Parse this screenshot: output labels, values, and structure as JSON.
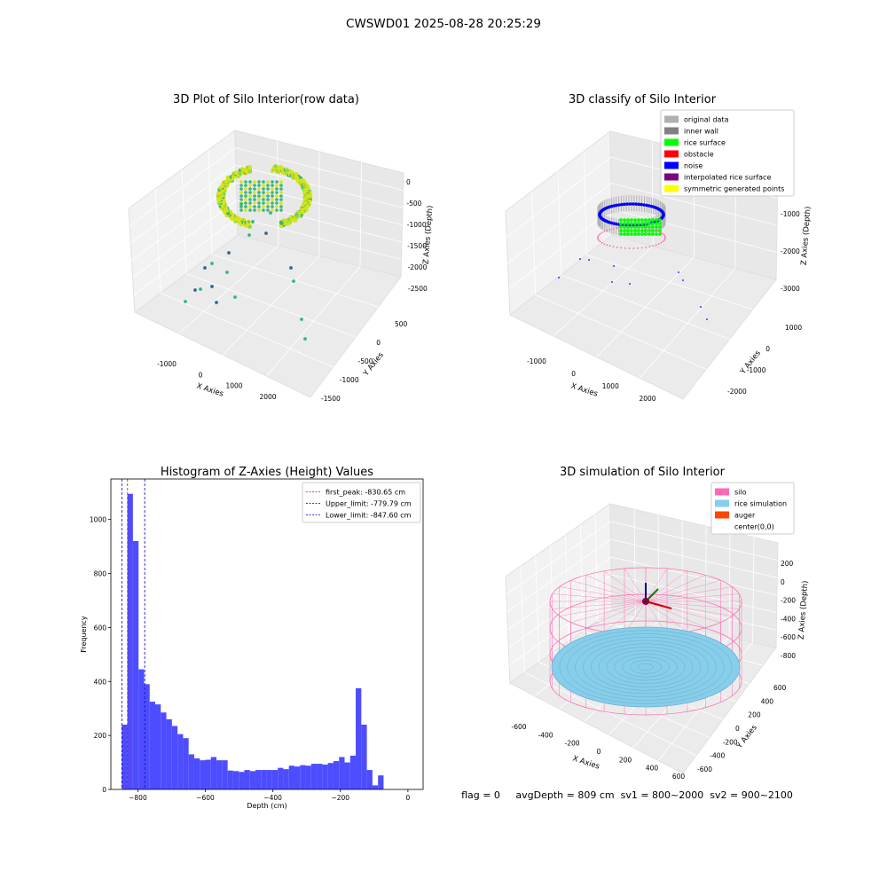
{
  "figure": {
    "title": "CWSWD01 2025-08-28 20:25:29",
    "status_text": "flag = 0     avgDepth = 809 cm  sv1 = 800~2000  sv2 = 900~2100"
  },
  "chart_data": [
    {
      "type": "scatter",
      "id": "raw",
      "title": "3D Plot of Silo Interior(row data)",
      "xlabel": "X Axies",
      "ylabel": "Y Axies",
      "zlabel": "Z Axies (Depth)",
      "x_ticks": [
        "-1000",
        "0",
        "1000",
        "2000"
      ],
      "y_ticks": [
        "500",
        "0",
        "-500",
        "-1000",
        "-1500"
      ],
      "z_ticks": [
        "0",
        "-500",
        "-1000",
        "-1500",
        "-2000",
        "-2500"
      ],
      "colormap": "viridis",
      "colors": {
        "high": "#d8e219",
        "mid": "#35b779",
        "low": "#31688e"
      }
    },
    {
      "type": "scatter",
      "id": "classify",
      "title": "3D classify of Silo Interior",
      "xlabel": "X Axies",
      "ylabel": "Y Axies",
      "zlabel": "Z Axies (Depth)",
      "x_ticks": [
        "-1000",
        "0",
        "1000",
        "2000"
      ],
      "y_ticks": [
        "1000",
        "0",
        "-1000",
        "-2000"
      ],
      "z_ticks": [
        "0",
        "-1000",
        "-2000",
        "-3000"
      ],
      "legend_position": "top-right",
      "legend": [
        {
          "label": "original data",
          "color": "#b0b0b0"
        },
        {
          "label": "inner wall",
          "color": "#808080"
        },
        {
          "label": "rice surface",
          "color": "#00ff00"
        },
        {
          "label": "obstacle",
          "color": "#ff0000"
        },
        {
          "label": "noise",
          "color": "#0000ff"
        },
        {
          "label": "interpolated rice surface",
          "color": "#800080"
        },
        {
          "label": "symmetric generated points",
          "color": "#ffff00"
        }
      ]
    },
    {
      "type": "bar",
      "id": "hist",
      "title": "Histogram of Z-Axies (Height) Values",
      "xlabel": "Depth (cm)",
      "ylabel": "Frequency",
      "xlim": [
        -880,
        45
      ],
      "ylim": [
        0,
        1150
      ],
      "x_ticks": [
        -800,
        -600,
        -400,
        -200,
        0
      ],
      "y_ticks": [
        0,
        200,
        400,
        600,
        800,
        1000
      ],
      "bar_color": "#4d4dff",
      "bin_start": -847.6,
      "bin_width": 16.5,
      "values": [
        240,
        1095,
        920,
        445,
        390,
        325,
        315,
        285,
        260,
        235,
        205,
        190,
        130,
        115,
        108,
        110,
        120,
        108,
        108,
        70,
        68,
        65,
        72,
        68,
        72,
        72,
        72,
        72,
        80,
        75,
        88,
        85,
        90,
        88,
        95,
        95,
        92,
        98,
        105,
        120,
        100,
        125,
        375,
        240,
        72,
        15,
        52
      ],
      "lines": [
        {
          "label": "first_peak: -830.65 cm",
          "x": -830.65,
          "color": "#ff0000"
        },
        {
          "label": "Upper_limit: -779.79 cm",
          "x": -779.79,
          "color": "#0000cc"
        },
        {
          "label": "Lower_limit: -847.60 cm",
          "x": -847.6,
          "color": "#0000cc"
        }
      ],
      "legend_position": "top-right"
    },
    {
      "type": "scatter",
      "id": "sim",
      "title": "3D simulation of Silo Interior",
      "xlabel": "X Axies",
      "ylabel": "Y Axies",
      "zlabel": "Z Axies (Depth)",
      "x_ticks": [
        "-600",
        "-400",
        "-200",
        "0",
        "200",
        "400",
        "600"
      ],
      "y_ticks": [
        "600",
        "400",
        "200",
        "0",
        "-200",
        "-400",
        "-600"
      ],
      "z_ticks": [
        "200",
        "0",
        "-200",
        "-400",
        "-600",
        "-800"
      ],
      "legend_position": "top-right",
      "legend": [
        {
          "label": "silo",
          "color": "#ff69b4"
        },
        {
          "label": "rice simulation",
          "color": "#87ceeb"
        },
        {
          "label": "auger",
          "color": "#ff4500"
        },
        {
          "label": "center(0,0)",
          "color": "#ffffff"
        }
      ]
    }
  ]
}
